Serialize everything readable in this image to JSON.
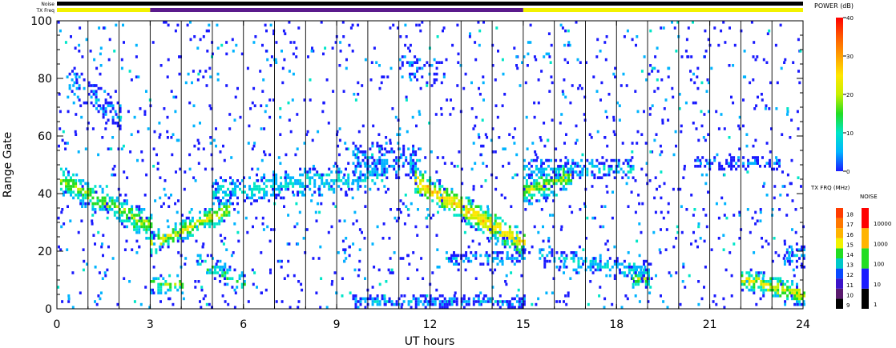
{
  "chart_data": {
    "type": "heatmap",
    "title": "",
    "xlabel": "UT hours",
    "ylabel": "Range Gate",
    "xlim": [
      0,
      24
    ],
    "ylim": [
      0,
      100
    ],
    "x_ticks": [
      "0",
      "3",
      "6",
      "9",
      "12",
      "15",
      "18",
      "21",
      "24"
    ],
    "y_ticks": [
      "0",
      "20",
      "40",
      "60",
      "80",
      "100"
    ],
    "grid": "vertical lines every hour",
    "top_bars": {
      "noise_label": "Noise",
      "txfreq_label": "TX Freq",
      "noise_color": "#000000",
      "txfreq_segments": [
        {
          "start": 0,
          "end": 3,
          "color": "#f2f200"
        },
        {
          "start": 3,
          "end": 15,
          "color": "#5a1a8c"
        },
        {
          "start": 15,
          "end": 24,
          "color": "#f2f200"
        }
      ]
    },
    "power_scale": {
      "title": "POWER (dB)",
      "min": 0,
      "max": 40,
      "ticks": [
        "0",
        "10",
        "20",
        "30",
        "40"
      ],
      "stops": [
        "#1a1aff",
        "#00b4ff",
        "#00e6c8",
        "#22dd22",
        "#c8f000",
        "#ffe600",
        "#ffa000",
        "#ff5a00",
        "#ff0000"
      ]
    },
    "txfreq_scale": {
      "title": "TX FRQ (MHz)",
      "labels": [
        "9",
        "10",
        "11",
        "12",
        "13",
        "14",
        "15",
        "16",
        "17",
        "18"
      ],
      "colors": [
        "#000000",
        "#5a1a6e",
        "#3c14c8",
        "#0a4aff",
        "#00c8c8",
        "#22dd22",
        "#f2f200",
        "#ffb400",
        "#ff7800",
        "#ff3c00"
      ]
    },
    "noise_scale": {
      "title": "NOISE",
      "labels": [
        "1",
        "10",
        "100",
        "1000",
        "10000"
      ],
      "colors": [
        "#000000",
        "#1a1aff",
        "#22dd22",
        "#ffb400",
        "#ff0000"
      ]
    },
    "echo_regions": [
      {
        "t0": 0.1,
        "t1": 3.0,
        "g0": 44,
        "g1": 28,
        "width": 8,
        "power": 18,
        "density": 0.8
      },
      {
        "t0": 0.3,
        "t1": 2.0,
        "g0": 80,
        "g1": 66,
        "width": 8,
        "power": 6,
        "density": 0.45
      },
      {
        "t0": 3.0,
        "t1": 5.5,
        "g0": 22,
        "g1": 34,
        "width": 6,
        "power": 22,
        "density": 0.8
      },
      {
        "t0": 3.0,
        "t1": 4.0,
        "g0": 8,
        "g1": 8,
        "width": 6,
        "power": 16,
        "density": 0.7
      },
      {
        "t0": 4.5,
        "t1": 6.0,
        "g0": 16,
        "g1": 8,
        "width": 6,
        "power": 14,
        "density": 0.5
      },
      {
        "t0": 5.0,
        "t1": 10.5,
        "g0": 40,
        "g1": 46,
        "width": 8,
        "power": 10,
        "density": 0.6
      },
      {
        "t0": 9.5,
        "t1": 11.5,
        "g0": 52,
        "g1": 50,
        "width": 10,
        "power": 6,
        "density": 0.55
      },
      {
        "t0": 11.0,
        "t1": 12.5,
        "g0": 86,
        "g1": 80,
        "width": 8,
        "power": 5,
        "density": 0.35
      },
      {
        "t0": 11.5,
        "t1": 15.0,
        "g0": 44,
        "g1": 22,
        "width": 8,
        "power": 26,
        "density": 0.85
      },
      {
        "t0": 12.5,
        "t1": 15.0,
        "g0": 17,
        "g1": 17,
        "width": 4,
        "power": 6,
        "density": 0.5
      },
      {
        "t0": 15.0,
        "t1": 16.5,
        "g0": 40,
        "g1": 46,
        "width": 8,
        "power": 20,
        "density": 0.8
      },
      {
        "t0": 15.0,
        "t1": 18.5,
        "g0": 48,
        "g1": 48,
        "width": 6,
        "power": 8,
        "density": 0.6
      },
      {
        "t0": 15.5,
        "t1": 19.0,
        "g0": 18,
        "g1": 12,
        "width": 6,
        "power": 9,
        "density": 0.5
      },
      {
        "t0": 20.5,
        "t1": 23.2,
        "g0": 50,
        "g1": 50,
        "width": 4,
        "power": 3,
        "density": 0.6
      },
      {
        "t0": 22.0,
        "t1": 24.0,
        "g0": 10,
        "g1": 4,
        "width": 6,
        "power": 22,
        "density": 0.85
      },
      {
        "t0": 23.3,
        "t1": 24.0,
        "g0": 18,
        "g1": 18,
        "width": 8,
        "power": 6,
        "density": 0.5
      },
      {
        "t0": 9.5,
        "t1": 15.0,
        "g0": 2,
        "g1": 2,
        "width": 3,
        "power": 6,
        "density": 0.7
      },
      {
        "t0": 18.5,
        "t1": 19.0,
        "g0": 10,
        "g1": 10,
        "width": 6,
        "power": 18,
        "density": 0.7
      }
    ]
  }
}
